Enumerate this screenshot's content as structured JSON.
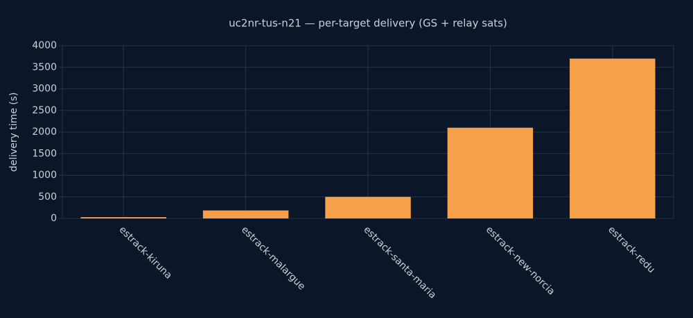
{
  "chart_data": {
    "type": "bar",
    "title": "uc2nr-tus-n21 — per-target delivery (GS + relay sats)",
    "y_label": "delivery time (s)",
    "categories": [
      "estrack-kiruna",
      "estrack-malargue",
      "estrack-santa-maria",
      "estrack-new-norcia",
      "estrack-redu"
    ],
    "values": [
      30,
      185,
      500,
      2100,
      3700
    ],
    "color": "#f7a04a",
    "ylim": [
      0,
      4000
    ],
    "yticks": [
      0,
      500,
      1000,
      1500,
      2000,
      2500,
      3000,
      3500,
      4000
    ],
    "grid": true
  }
}
